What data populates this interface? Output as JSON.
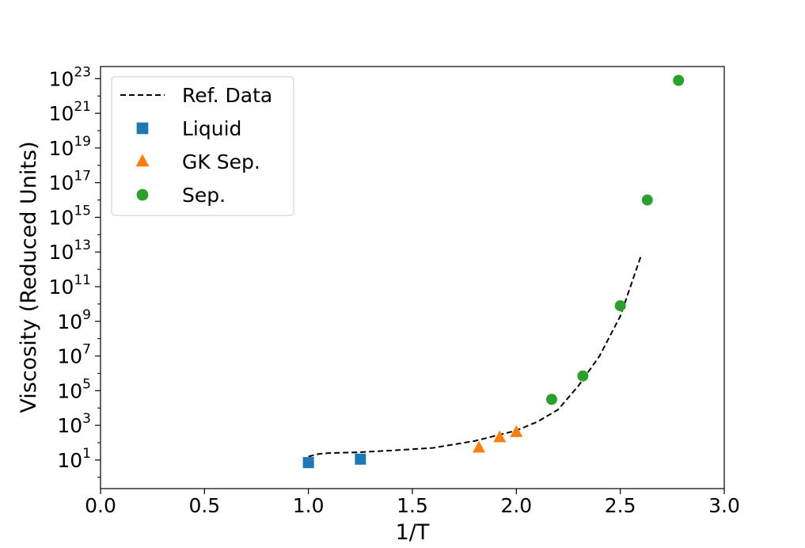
{
  "chart_data": {
    "type": "scatter",
    "xlabel": "1/T",
    "ylabel": "Viscosity (Reduced Units)",
    "xlim": [
      0.0,
      3.0
    ],
    "ylim_log10": [
      -0.65,
      23.7
    ],
    "yscale": "log",
    "grid": false,
    "legend_position": "top-left",
    "x_ticks": [
      "0.0",
      "0.5",
      "1.0",
      "1.5",
      "2.0",
      "2.5",
      "3.0"
    ],
    "y_ticks": [
      {
        "base": "10",
        "exp": "1"
      },
      {
        "base": "10",
        "exp": "3"
      },
      {
        "base": "10",
        "exp": "5"
      },
      {
        "base": "10",
        "exp": "7"
      },
      {
        "base": "10",
        "exp": "9"
      },
      {
        "base": "10",
        "exp": "11"
      },
      {
        "base": "10",
        "exp": "13"
      },
      {
        "base": "10",
        "exp": "15"
      },
      {
        "base": "10",
        "exp": "17"
      },
      {
        "base": "10",
        "exp": "19"
      },
      {
        "base": "10",
        "exp": "21"
      },
      {
        "base": "10",
        "exp": "23"
      }
    ],
    "series": [
      {
        "name": "Ref. Data",
        "kind": "line",
        "style": "dashed",
        "color": "#000000",
        "x": [
          1.0,
          1.05,
          1.1,
          1.25,
          1.4,
          1.6,
          1.8,
          2.0,
          2.1,
          2.2,
          2.3,
          2.4,
          2.5,
          2.6
        ],
        "log10_y": [
          1.2,
          1.35,
          1.4,
          1.45,
          1.55,
          1.7,
          2.1,
          2.7,
          3.2,
          3.9,
          5.3,
          7.0,
          9.3,
          12.8
        ]
      },
      {
        "name": "Liquid",
        "kind": "scatter",
        "marker": "square",
        "color": "#1f77b4",
        "x": [
          1.0,
          1.25
        ],
        "log10_y": [
          0.85,
          1.05
        ]
      },
      {
        "name": "GK Sep.",
        "kind": "scatter",
        "marker": "triangle",
        "color": "#ff7f0e",
        "x": [
          1.82,
          1.92,
          2.0
        ],
        "log10_y": [
          1.7,
          2.3,
          2.6
        ]
      },
      {
        "name": "Sep.",
        "kind": "scatter",
        "marker": "circle",
        "color": "#2ca02c",
        "x": [
          2.17,
          2.32,
          2.5,
          2.63,
          2.78
        ],
        "log10_y": [
          4.5,
          5.85,
          9.9,
          16.0,
          22.9
        ]
      }
    ]
  }
}
